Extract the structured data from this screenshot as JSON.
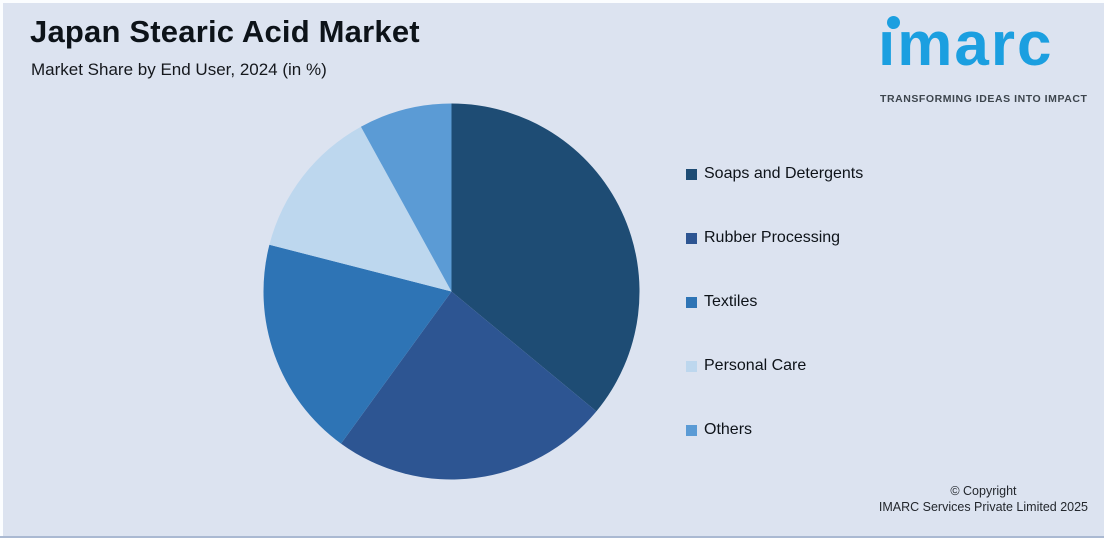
{
  "header": {
    "title": "Japan Stearic Acid Market",
    "subtitle": "Market Share by End User, 2024 (in %)"
  },
  "logo": {
    "wordmark": "imarc",
    "tagline": "TRANSFORMING IDEAS INTO IMPACT",
    "brand_color": "#1b9fe0",
    "tagline_color": "#3d454d"
  },
  "chart_data": {
    "type": "pie",
    "title": "Japan Stearic Acid Market",
    "subtitle": "Market Share by End User, 2024 (in %)",
    "categories": [
      "Soaps and Detergents",
      "Rubber Processing",
      "Textiles",
      "Personal Care",
      "Others"
    ],
    "values": [
      36,
      24,
      19,
      13,
      8
    ],
    "unit": "%",
    "colors": [
      "#1E4C74",
      "#2D5592",
      "#2E74B5",
      "#BDD7EE",
      "#5B9BD5"
    ],
    "start_angle_deg": 0,
    "direction": "clockwise",
    "legend_position": "right",
    "data_labels": false,
    "background_color": "#dce3f0"
  },
  "footer": {
    "copyright_line1": "© Copyright",
    "copyright_line2": "IMARC Services Private Limited 2025"
  }
}
